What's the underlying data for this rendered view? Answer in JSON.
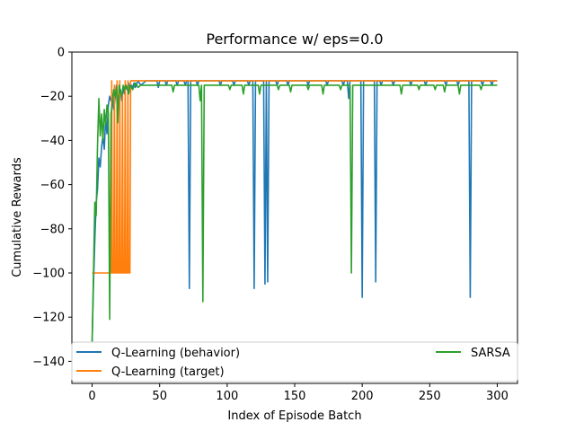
{
  "chart_data": {
    "type": "line",
    "title": "Performance w/ eps=0.0",
    "xlabel": "Index of Episode Batch",
    "ylabel": "Cumulative Rewards",
    "xlim": [
      -15,
      315
    ],
    "ylim": [
      -150,
      0
    ],
    "xticks": [
      0,
      50,
      100,
      150,
      200,
      250,
      300
    ],
    "yticks": [
      0,
      -20,
      -40,
      -60,
      -80,
      -100,
      -120,
      -140
    ],
    "grid": false,
    "legend_position": "lower center, spanning the width, two columns",
    "series": [
      {
        "name": "Q-Learning (behavior)",
        "color": "#1f77b4",
        "baseline": -13,
        "start": [
          [
            0,
            -131
          ],
          [
            1,
            -105
          ],
          [
            2,
            -85
          ],
          [
            3,
            -68
          ],
          [
            4,
            -62
          ],
          [
            5,
            -48
          ],
          [
            6,
            -52
          ],
          [
            7,
            -43
          ],
          [
            8,
            -38
          ],
          [
            9,
            -44
          ],
          [
            10,
            -30
          ],
          [
            11,
            -37
          ],
          [
            12,
            -24
          ],
          [
            13,
            -20
          ],
          [
            14,
            -22
          ],
          [
            15,
            -19
          ],
          [
            16,
            -26
          ],
          [
            17,
            -21
          ],
          [
            18,
            -15
          ],
          [
            19,
            -24
          ],
          [
            20,
            -18
          ],
          [
            21,
            -17
          ],
          [
            22,
            -22
          ],
          [
            23,
            -16
          ],
          [
            24,
            -19
          ],
          [
            25,
            -15
          ],
          [
            26,
            -17
          ],
          [
            27,
            -14
          ],
          [
            28,
            -18
          ],
          [
            29,
            -15
          ],
          [
            30,
            -16
          ],
          [
            31,
            -14
          ],
          [
            32,
            -16
          ],
          [
            34,
            -13
          ],
          [
            36,
            -15
          ],
          [
            38,
            -14
          ],
          [
            40,
            -13
          ]
        ],
        "dips": [
          [
            72,
            -107
          ],
          [
            120,
            -107
          ],
          [
            128,
            -105
          ],
          [
            130,
            -104
          ],
          [
            200,
            -111
          ],
          [
            210,
            -104
          ],
          [
            280,
            -111
          ],
          [
            190,
            -21
          ],
          [
            49,
            -16
          ],
          [
            55,
            -15
          ],
          [
            63,
            -15
          ],
          [
            69,
            -15
          ],
          [
            78,
            -15
          ],
          [
            95,
            -15
          ],
          [
            105,
            -15
          ],
          [
            116,
            -15
          ],
          [
            137,
            -15
          ],
          [
            145,
            -15
          ],
          [
            160,
            -15
          ],
          [
            174,
            -15
          ],
          [
            186,
            -15
          ],
          [
            214,
            -15
          ],
          [
            223,
            -15
          ],
          [
            236,
            -15
          ],
          [
            247,
            -15
          ],
          [
            262,
            -15
          ],
          [
            271,
            -15
          ],
          [
            289,
            -15
          ],
          [
            296,
            -15
          ]
        ]
      },
      {
        "name": "Q-Learning (target)",
        "color": "#ff7f0e",
        "points": [
          [
            0,
            -100
          ],
          [
            14,
            -100
          ],
          [
            14.5,
            -13
          ],
          [
            15,
            -100
          ],
          [
            16,
            -100
          ],
          [
            16.5,
            -15
          ],
          [
            17,
            -100
          ],
          [
            18,
            -100
          ],
          [
            18.5,
            -13
          ],
          [
            19,
            -100
          ],
          [
            20,
            -100
          ],
          [
            20.5,
            -13
          ],
          [
            21,
            -100
          ],
          [
            22,
            -100
          ],
          [
            22.5,
            -18
          ],
          [
            23,
            -100
          ],
          [
            24,
            -100
          ],
          [
            24.5,
            -13
          ],
          [
            25,
            -100
          ],
          [
            26,
            -100
          ],
          [
            26.5,
            -13
          ],
          [
            27,
            -100
          ],
          [
            28,
            -100
          ],
          [
            28.5,
            -13
          ],
          [
            300,
            -13
          ]
        ]
      },
      {
        "name": "SARSA",
        "color": "#2ca02c",
        "baseline": -15,
        "start": [
          [
            0,
            -131
          ],
          [
            1,
            -100
          ],
          [
            2,
            -68
          ],
          [
            3,
            -74
          ],
          [
            4,
            -42
          ],
          [
            5,
            -21
          ],
          [
            6,
            -38
          ],
          [
            7,
            -28
          ],
          [
            8,
            -40
          ],
          [
            9,
            -26
          ],
          [
            10,
            -33
          ],
          [
            11,
            -24
          ],
          [
            12,
            -27
          ],
          [
            13,
            -121
          ],
          [
            14,
            -28
          ],
          [
            15,
            -23
          ],
          [
            16,
            -17
          ],
          [
            17,
            -20
          ],
          [
            18,
            -16
          ],
          [
            19,
            -32
          ],
          [
            20,
            -15
          ],
          [
            21,
            -18
          ],
          [
            22,
            -20
          ],
          [
            23,
            -15
          ],
          [
            24,
            -17
          ],
          [
            25,
            -15
          ],
          [
            26,
            -16
          ],
          [
            27,
            -19
          ],
          [
            28,
            -15
          ],
          [
            30,
            -17
          ],
          [
            32,
            -14
          ],
          [
            34,
            -16
          ],
          [
            36,
            -15
          ]
        ],
        "dips": [
          [
            82,
            -113
          ],
          [
            192,
            -100
          ],
          [
            80,
            -22
          ],
          [
            60,
            -18
          ],
          [
            112,
            -19
          ],
          [
            124,
            -19
          ],
          [
            147,
            -18
          ],
          [
            171,
            -19
          ],
          [
            229,
            -19
          ],
          [
            261,
            -18
          ],
          [
            272,
            -19
          ],
          [
            102,
            -17
          ],
          [
            138,
            -17
          ],
          [
            160,
            -17
          ],
          [
            184,
            -17
          ],
          [
            242,
            -17
          ],
          [
            254,
            -17
          ],
          [
            288,
            -17
          ]
        ]
      }
    ]
  }
}
